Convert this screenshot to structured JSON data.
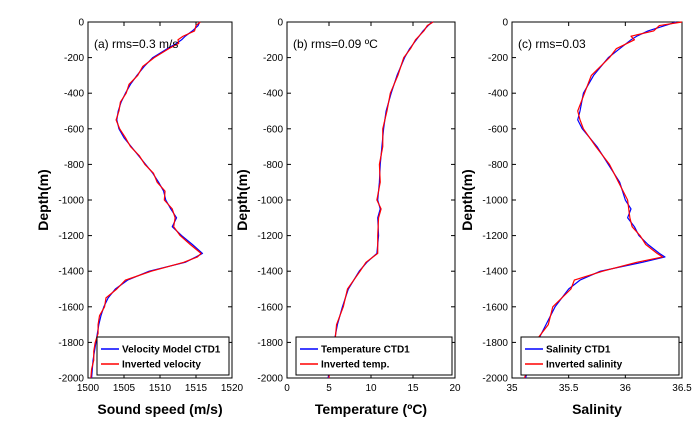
{
  "chart_data": [
    {
      "type": "line",
      "annotation": "(a) rms=0.3 m/s",
      "xlabel": "Sound speed (m/s)",
      "ylabel": "Depth(m)",
      "xlim": [
        1500,
        1520
      ],
      "ylim": [
        -2000,
        0
      ],
      "xticks": [
        "1500",
        "1505",
        "1510",
        "1515",
        "1520"
      ],
      "yticks": [
        "0",
        "-200",
        "-400",
        "-600",
        "-800",
        "-1000",
        "-1200",
        "-1400",
        "-1600",
        "-1800",
        "-2000"
      ],
      "legend_position": "bottom-right",
      "series": [
        {
          "name": "Velocity Model CTD1",
          "color": "#0000ff",
          "depth": [
            0,
            -20,
            -50,
            -80,
            -100,
            -120,
            -150,
            -200,
            -250,
            -300,
            -350,
            -400,
            -450,
            -500,
            -550,
            -600,
            -650,
            -700,
            -750,
            -800,
            -850,
            -900,
            -950,
            -1000,
            -1050,
            -1100,
            -1150,
            -1200,
            -1250,
            -1300,
            -1320,
            -1350,
            -1400,
            -1450,
            -1500,
            -1550,
            -1600,
            -1650,
            -1700,
            -1750,
            -1800,
            -1850,
            -1900,
            -1950,
            -2000
          ],
          "values": [
            1515.5,
            1515.3,
            1514.5,
            1513.5,
            1513.0,
            1512.3,
            1511.0,
            1509.0,
            1507.8,
            1506.8,
            1505.9,
            1505.2,
            1504.6,
            1504.2,
            1504.0,
            1504.3,
            1505.0,
            1506.0,
            1507.0,
            1508.0,
            1509.0,
            1509.8,
            1510.5,
            1510.8,
            1511.5,
            1512.3,
            1511.7,
            1513.0,
            1514.5,
            1515.9,
            1515.0,
            1513.5,
            1508.5,
            1505.5,
            1503.8,
            1502.8,
            1502.2,
            1501.8,
            1501.5,
            1501.3,
            1501.1,
            1500.9,
            1500.7,
            1500.6,
            1500.5
          ]
        },
        {
          "name": "Inverted velocity",
          "color": "#ff0000",
          "depth": [
            0,
            -20,
            -50,
            -80,
            -100,
            -120,
            -150,
            -200,
            -250,
            -300,
            -350,
            -400,
            -450,
            -500,
            -550,
            -600,
            -650,
            -700,
            -750,
            -800,
            -850,
            -900,
            -950,
            -1000,
            -1050,
            -1100,
            -1150,
            -1200,
            -1250,
            -1300,
            -1320,
            -1350,
            -1400,
            -1450,
            -1500,
            -1550,
            -1600,
            -1650,
            -1700,
            -1750,
            -1800,
            -1850,
            -1900,
            -1950,
            -2000
          ],
          "values": [
            1515.6,
            1515.0,
            1514.8,
            1513.2,
            1512.5,
            1512.6,
            1511.2,
            1509.2,
            1507.6,
            1506.9,
            1505.7,
            1505.3,
            1504.5,
            1504.3,
            1503.9,
            1504.4,
            1505.2,
            1505.9,
            1507.1,
            1507.9,
            1509.1,
            1509.6,
            1510.7,
            1510.6,
            1511.7,
            1512.1,
            1511.9,
            1512.8,
            1514.2,
            1515.7,
            1515.2,
            1513.3,
            1508.8,
            1505.2,
            1504.0,
            1502.5,
            1502.3,
            1501.6,
            1501.4,
            1501.4,
            1501.0,
            1500.8,
            1500.8,
            1500.5,
            1500.4
          ]
        }
      ]
    },
    {
      "type": "line",
      "annotation": "(b) rms=0.09 ºC",
      "xlabel": "Temperature (ºC)",
      "ylabel": "Depth(m)",
      "xlim": [
        0,
        20
      ],
      "ylim": [
        -2000,
        0
      ],
      "xticks": [
        "0",
        "5",
        "10",
        "15",
        "20"
      ],
      "yticks": [
        "0",
        "-200",
        "-400",
        "-600",
        "-800",
        "-1000",
        "-1200",
        "-1400",
        "-1600",
        "-1800",
        "-2000"
      ],
      "legend_position": "bottom-right",
      "series": [
        {
          "name": "Temperature CTD1",
          "color": "#0000ff",
          "depth": [
            0,
            -20,
            -50,
            -100,
            -150,
            -200,
            -300,
            -400,
            -500,
            -600,
            -700,
            -800,
            -900,
            -1000,
            -1050,
            -1100,
            -1200,
            -1300,
            -1350,
            -1400,
            -1500,
            -1600,
            -1700,
            -1800,
            -1900,
            -2000
          ],
          "values": [
            17.3,
            16.8,
            16.2,
            15.4,
            14.6,
            14.0,
            13.1,
            12.4,
            11.8,
            11.5,
            11.3,
            11.1,
            11.0,
            10.8,
            11.1,
            10.8,
            10.9,
            10.7,
            9.5,
            8.6,
            7.3,
            6.6,
            6.0,
            5.6,
            5.2,
            4.9
          ]
        },
        {
          "name": "Inverted temp.",
          "color": "#ff0000",
          "depth": [
            0,
            -20,
            -50,
            -100,
            -150,
            -200,
            -300,
            -400,
            -500,
            -600,
            -700,
            -800,
            -900,
            -1000,
            -1050,
            -1100,
            -1200,
            -1300,
            -1350,
            -1400,
            -1500,
            -1600,
            -1700,
            -1800,
            -1900,
            -2000
          ],
          "values": [
            17.4,
            16.7,
            16.3,
            15.3,
            14.7,
            13.9,
            13.2,
            12.3,
            11.9,
            11.4,
            11.4,
            11.0,
            11.1,
            10.7,
            11.2,
            10.9,
            10.8,
            10.8,
            9.4,
            8.7,
            7.2,
            6.7,
            5.9,
            5.7,
            5.1,
            5.0
          ]
        }
      ]
    },
    {
      "type": "line",
      "annotation": "(c) rms=0.03",
      "xlabel": "Salinity",
      "ylabel": "Depth(m)",
      "xlim": [
        35,
        36.5
      ],
      "ylim": [
        -2000,
        0
      ],
      "xticks": [
        "35",
        "35.5",
        "36",
        "36.5"
      ],
      "yticks": [
        "0",
        "-200",
        "-400",
        "-600",
        "-800",
        "-1000",
        "-1200",
        "-1400",
        "-1600",
        "-1800",
        "-2000"
      ],
      "legend_position": "bottom-right",
      "series": [
        {
          "name": "Salinity CTD1",
          "color": "#0000ff",
          "depth": [
            0,
            -20,
            -50,
            -80,
            -100,
            -150,
            -200,
            -300,
            -400,
            -500,
            -550,
            -600,
            -700,
            -800,
            -900,
            -1000,
            -1050,
            -1100,
            -1150,
            -1200,
            -1250,
            -1300,
            -1320,
            -1350,
            -1400,
            -1450,
            -1500,
            -1600,
            -1700,
            -1800,
            -1900,
            -2000
          ],
          "values": [
            36.45,
            36.35,
            36.2,
            36.1,
            36.05,
            35.95,
            35.85,
            35.72,
            35.63,
            35.6,
            35.58,
            35.62,
            35.75,
            35.85,
            35.95,
            36.0,
            36.05,
            36.02,
            36.08,
            36.12,
            36.2,
            36.3,
            36.35,
            36.15,
            35.78,
            35.6,
            35.5,
            35.38,
            35.3,
            35.22,
            35.16,
            35.12
          ]
        },
        {
          "name": "Inverted salinity",
          "color": "#ff0000",
          "depth": [
            0,
            -20,
            -50,
            -80,
            -100,
            -150,
            -200,
            -300,
            -400,
            -500,
            -550,
            -600,
            -700,
            -800,
            -900,
            -1000,
            -1050,
            -1100,
            -1150,
            -1200,
            -1250,
            -1300,
            -1320,
            -1350,
            -1400,
            -1450,
            -1500,
            -1600,
            -1700,
            -1800,
            -1900,
            -2000
          ],
          "values": [
            36.5,
            36.3,
            36.25,
            36.05,
            36.08,
            35.92,
            35.86,
            35.7,
            35.64,
            35.58,
            35.6,
            35.63,
            35.74,
            35.86,
            35.94,
            36.02,
            36.03,
            36.04,
            36.06,
            36.13,
            36.18,
            36.28,
            36.33,
            36.1,
            35.8,
            35.55,
            35.52,
            35.36,
            35.32,
            35.2,
            35.17,
            35.11
          ]
        }
      ]
    }
  ]
}
